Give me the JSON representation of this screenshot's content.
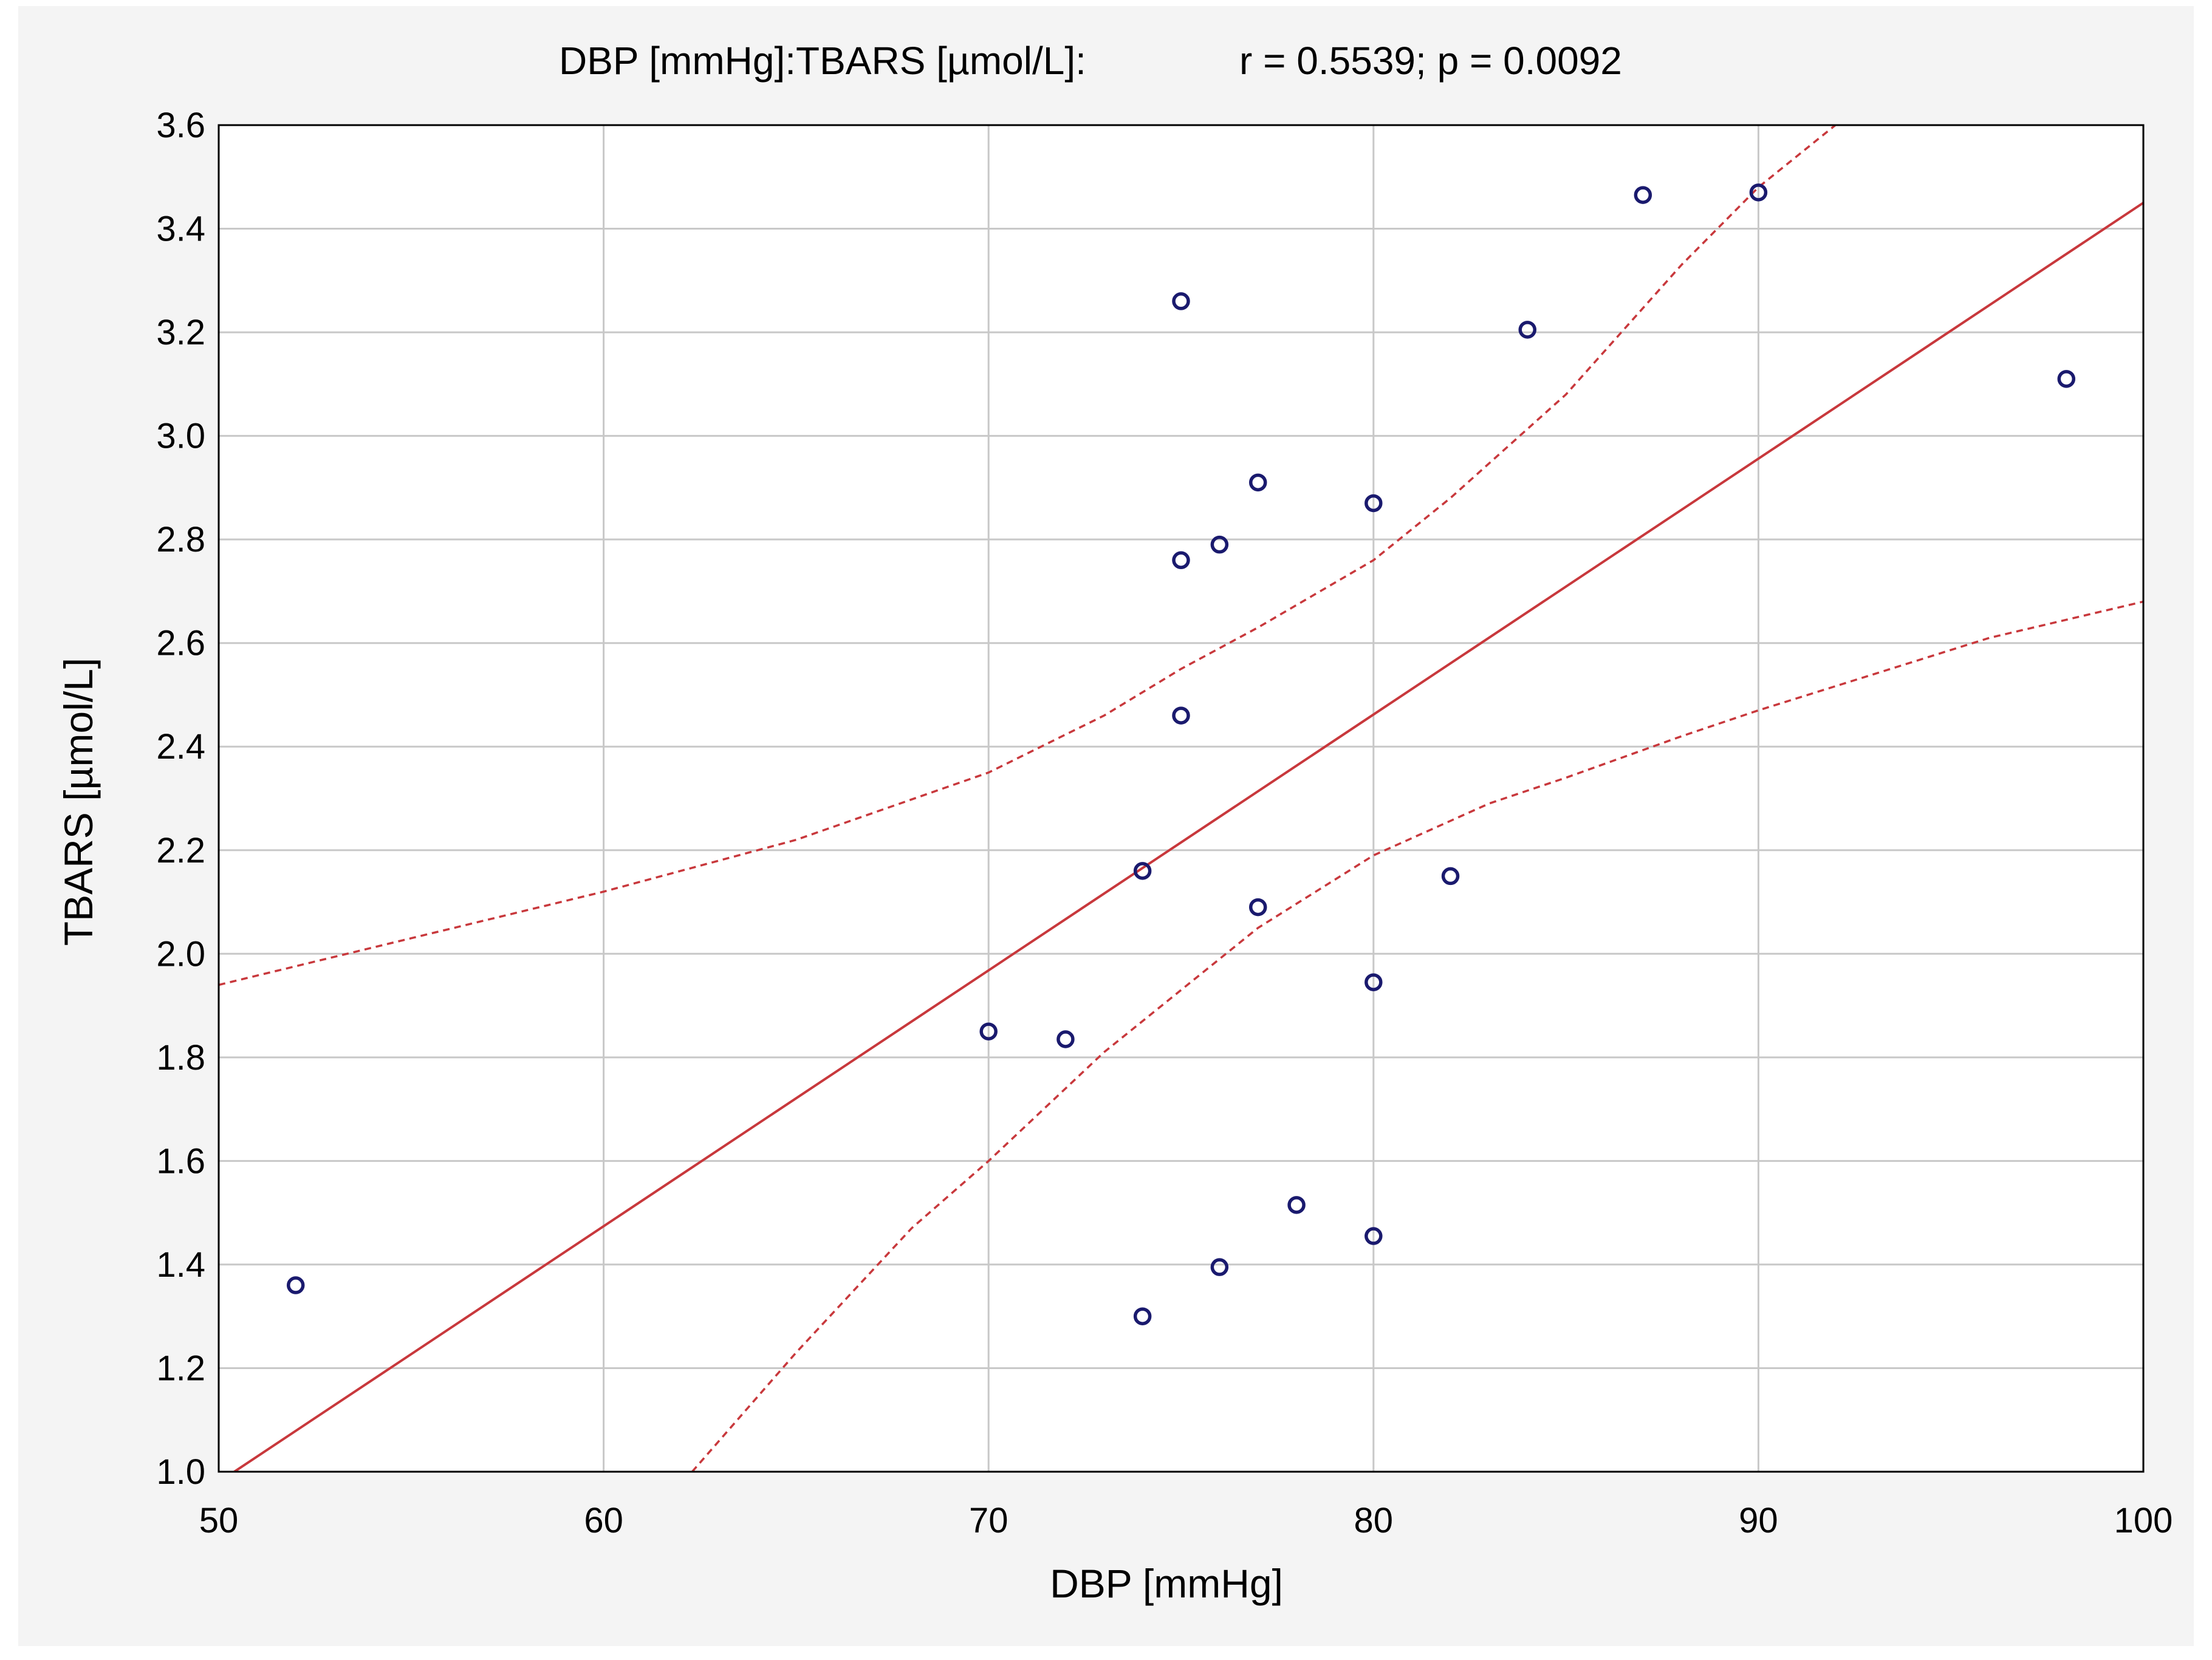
{
  "chart_data": {
    "type": "scatter",
    "title": "DBP [mmHg]:TBARS [µmol/L]:",
    "stats": "r = 0.5539; p = 0.0092",
    "xlabel": "DBP [mmHg]",
    "ylabel": "TBARS [µmol/L]",
    "xlim": [
      50,
      100
    ],
    "ylim": [
      1.0,
      3.6
    ],
    "x_ticks": [
      "50",
      "60",
      "70",
      "80",
      "90",
      "100"
    ],
    "y_ticks": [
      "1.0",
      "1.2",
      "1.4",
      "1.6",
      "1.8",
      "2.0",
      "2.2",
      "2.4",
      "2.6",
      "2.8",
      "3.0",
      "3.2",
      "3.4",
      "3.6"
    ],
    "grid": true,
    "points": [
      {
        "x": 52,
        "y": 1.36
      },
      {
        "x": 70,
        "y": 1.85
      },
      {
        "x": 72,
        "y": 1.835
      },
      {
        "x": 74,
        "y": 2.16
      },
      {
        "x": 74,
        "y": 1.3
      },
      {
        "x": 75,
        "y": 3.26
      },
      {
        "x": 75,
        "y": 2.76
      },
      {
        "x": 75,
        "y": 2.46
      },
      {
        "x": 76,
        "y": 2.79
      },
      {
        "x": 76,
        "y": 1.395
      },
      {
        "x": 77,
        "y": 2.91
      },
      {
        "x": 77,
        "y": 2.09
      },
      {
        "x": 78,
        "y": 1.515
      },
      {
        "x": 80,
        "y": 2.87
      },
      {
        "x": 80,
        "y": 1.945
      },
      {
        "x": 80,
        "y": 1.455
      },
      {
        "x": 82,
        "y": 2.15
      },
      {
        "x": 84,
        "y": 3.205
      },
      {
        "x": 87,
        "y": 3.465
      },
      {
        "x": 90,
        "y": 3.47
      },
      {
        "x": 98,
        "y": 3.11
      }
    ],
    "regression_line": [
      {
        "x": 50,
        "y": 0.98
      },
      {
        "x": 100,
        "y": 3.45
      }
    ],
    "confidence_upper": [
      {
        "x": 50,
        "y": 1.94
      },
      {
        "x": 55,
        "y": 2.03
      },
      {
        "x": 60,
        "y": 2.12
      },
      {
        "x": 65,
        "y": 2.22
      },
      {
        "x": 70,
        "y": 2.35
      },
      {
        "x": 73,
        "y": 2.46
      },
      {
        "x": 75,
        "y": 2.55
      },
      {
        "x": 77,
        "y": 2.63
      },
      {
        "x": 80,
        "y": 2.76
      },
      {
        "x": 82,
        "y": 2.88
      },
      {
        "x": 85,
        "y": 3.08
      },
      {
        "x": 88,
        "y": 3.33
      },
      {
        "x": 90,
        "y": 3.48
      },
      {
        "x": 92,
        "y": 3.6
      }
    ],
    "confidence_lower": [
      {
        "x": 62.3,
        "y": 1.0
      },
      {
        "x": 65,
        "y": 1.23
      },
      {
        "x": 68,
        "y": 1.47
      },
      {
        "x": 70,
        "y": 1.6
      },
      {
        "x": 73,
        "y": 1.81
      },
      {
        "x": 75,
        "y": 1.93
      },
      {
        "x": 77,
        "y": 2.05
      },
      {
        "x": 80,
        "y": 2.19
      },
      {
        "x": 83,
        "y": 2.29
      },
      {
        "x": 85,
        "y": 2.34
      },
      {
        "x": 88,
        "y": 2.42
      },
      {
        "x": 90,
        "y": 2.47
      },
      {
        "x": 93,
        "y": 2.54
      },
      {
        "x": 96,
        "y": 2.61
      },
      {
        "x": 100,
        "y": 2.68
      }
    ],
    "colors": {
      "points": "#1a1a6e",
      "regression": "#c8383c",
      "confidence": "#c8383c",
      "grid": "#c8c8c8",
      "panel_background": "#f4f4f4",
      "plot_background": "#ffffff"
    }
  }
}
